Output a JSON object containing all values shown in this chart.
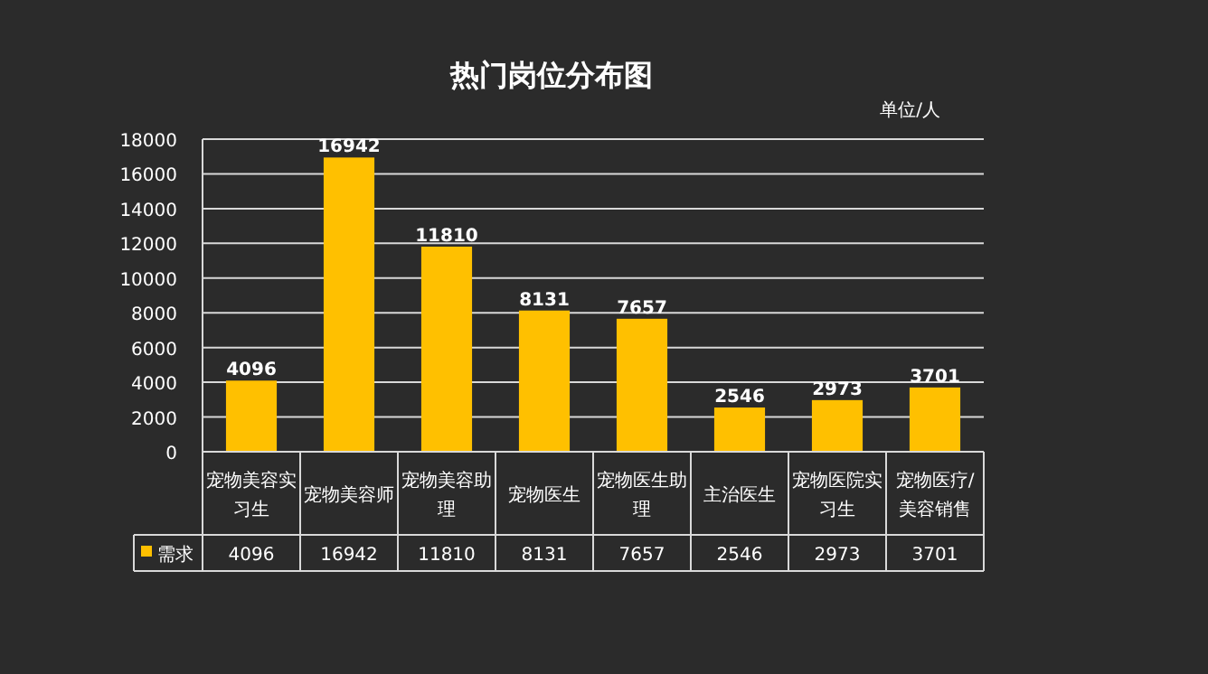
{
  "chart_data": {
    "type": "bar",
    "title": "热门岗位分布图",
    "annotations": [
      "单位/人"
    ],
    "categories": [
      "宠物美容实习生",
      "宠物美容师",
      "宠物美容助理",
      "宠物医生",
      "宠物医生助理",
      "主治医生",
      "宠物医院实习生",
      "宠物医疗/美容销售"
    ],
    "series": [
      {
        "name": "需求",
        "color": "#ffc000",
        "values": [
          4096,
          16942,
          11810,
          8131,
          7657,
          2546,
          2973,
          3701
        ],
        "value_labels": [
          "4096",
          "16942",
          "11810",
          "8131",
          "7657",
          "2546",
          "2973",
          "3701"
        ]
      }
    ],
    "ylim": [
      0,
      18000
    ],
    "yticks": [
      0,
      2000,
      4000,
      6000,
      8000,
      10000,
      12000,
      14000,
      16000,
      18000
    ],
    "grid": "y",
    "legend": "bottom",
    "data_labels": true
  }
}
